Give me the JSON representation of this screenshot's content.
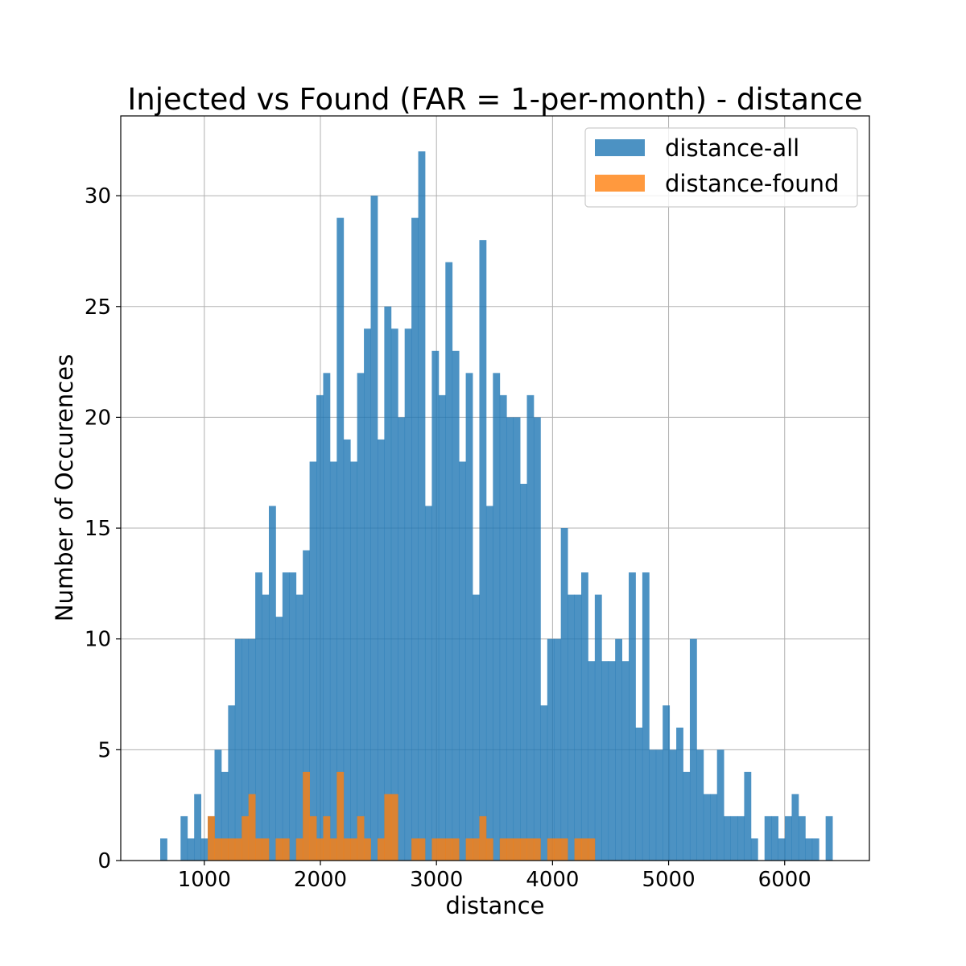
{
  "chart_data": {
    "type": "bar",
    "title": "Injected vs Found (FAR = 1-per-month) - distance",
    "xlabel": "distance",
    "ylabel": "Number of Occurences",
    "xlim": [
      280,
      6730
    ],
    "ylim": [
      0,
      33.6
    ],
    "xticks": [
      1000,
      2000,
      3000,
      4000,
      5000,
      6000
    ],
    "yticks": [
      0,
      5,
      10,
      15,
      20,
      25,
      30
    ],
    "grid": true,
    "legend_position": "top-right",
    "bin_start": 620,
    "bin_width": 58.5,
    "series": [
      {
        "name": "distance-all",
        "color": "#1f77b4",
        "opacity": 0.8,
        "values": [
          1,
          0,
          0,
          2,
          1,
          3,
          1,
          2,
          5,
          4,
          7,
          10,
          10,
          10,
          13,
          12,
          16,
          11,
          13,
          13,
          12,
          14,
          18,
          21,
          22,
          18,
          29,
          19,
          18,
          22,
          24,
          30,
          19,
          25,
          24,
          20,
          24,
          29,
          32,
          16,
          23,
          21,
          27,
          23,
          18,
          22,
          12,
          28,
          16,
          22,
          21,
          20,
          20,
          17,
          21,
          20,
          7,
          10,
          10,
          15,
          12,
          12,
          13,
          9,
          12,
          9,
          9,
          10,
          9,
          13,
          6,
          13,
          5,
          5,
          7,
          5,
          6,
          4,
          10,
          5,
          3,
          3,
          5,
          2,
          2,
          2,
          4,
          1,
          0,
          2,
          2,
          1,
          2,
          3,
          2,
          1,
          1,
          0,
          2
        ]
      },
      {
        "name": "distance-found",
        "color": "#ff7f0e",
        "opacity": 0.8,
        "values": [
          0,
          0,
          0,
          0,
          0,
          0,
          0,
          2,
          1,
          1,
          1,
          1,
          2,
          3,
          1,
          1,
          0,
          1,
          1,
          0,
          1,
          4,
          2,
          1,
          2,
          1,
          4,
          1,
          1,
          2,
          1,
          0,
          1,
          3,
          3,
          0,
          0,
          1,
          1,
          0,
          1,
          1,
          1,
          1,
          0,
          1,
          1,
          2,
          1,
          0,
          1,
          1,
          1,
          1,
          1,
          1,
          0,
          1,
          1,
          1,
          0,
          1,
          1,
          1,
          0,
          0,
          0,
          0,
          0,
          0,
          0,
          0,
          0,
          0,
          0,
          0,
          0,
          0,
          0,
          0,
          0,
          0,
          0,
          0,
          0,
          0,
          0,
          0,
          0,
          0,
          0,
          0,
          0,
          0,
          0,
          0,
          0,
          0,
          0,
          0
        ]
      }
    ]
  }
}
